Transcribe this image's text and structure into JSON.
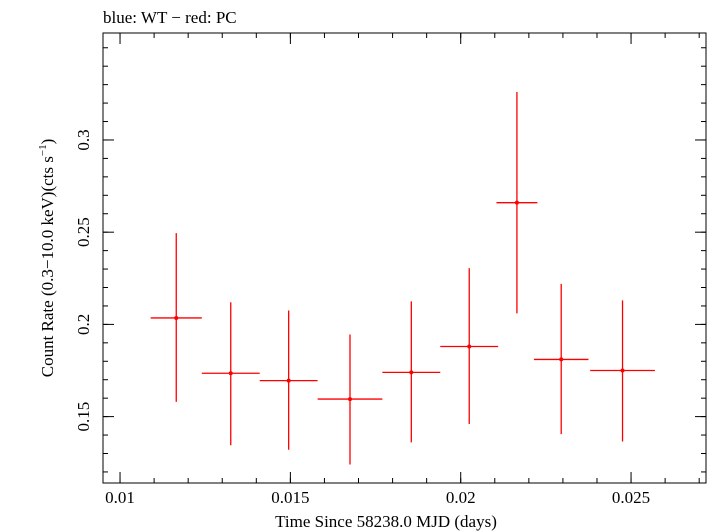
{
  "chart_data": {
    "type": "scatter",
    "title": "blue: WT − red: PC",
    "xlabel": "Time Since 58238.0 MJD (days)",
    "ylabel_main": "Count Rate (0.3−10.0 keV)(cts s",
    "ylabel_sup": "−1",
    "ylabel_end": ")",
    "xlim": [
      0.0095,
      0.0272
    ],
    "ylim": [
      0.114,
      0.358
    ],
    "x_ticks": [
      0.01,
      0.015,
      0.02,
      0.025
    ],
    "x_tick_labels": [
      "0.01",
      "0.015",
      "0.02",
      "0.025"
    ],
    "x_minor_step": 0.001,
    "y_ticks": [
      0.15,
      0.2,
      0.25,
      0.3
    ],
    "y_tick_labels": [
      "0.15",
      "0.2",
      "0.25",
      "0.3"
    ],
    "y_minor_step": 0.01,
    "grid": false,
    "series": [
      {
        "color": "#ff0000",
        "points": [
          {
            "x": 0.01165,
            "xerr": 0.00075,
            "y": 0.2035,
            "yerr_lo": 0.0455,
            "yerr_hi": 0.046
          },
          {
            "x": 0.01325,
            "xerr": 0.00085,
            "y": 0.1735,
            "yerr_lo": 0.039,
            "yerr_hi": 0.0385
          },
          {
            "x": 0.01495,
            "xerr": 0.00085,
            "y": 0.1695,
            "yerr_lo": 0.0375,
            "yerr_hi": 0.038
          },
          {
            "x": 0.01675,
            "xerr": 0.00095,
            "y": 0.1595,
            "yerr_lo": 0.0355,
            "yerr_hi": 0.035
          },
          {
            "x": 0.01855,
            "xerr": 0.00085,
            "y": 0.174,
            "yerr_lo": 0.038,
            "yerr_hi": 0.0385
          },
          {
            "x": 0.02025,
            "xerr": 0.00085,
            "y": 0.188,
            "yerr_lo": 0.042,
            "yerr_hi": 0.0425
          },
          {
            "x": 0.02165,
            "xerr": 0.0006,
            "y": 0.266,
            "yerr_lo": 0.06,
            "yerr_hi": 0.06
          },
          {
            "x": 0.02295,
            "xerr": 0.0008,
            "y": 0.181,
            "yerr_lo": 0.0405,
            "yerr_hi": 0.041
          },
          {
            "x": 0.02475,
            "xerr": 0.00095,
            "y": 0.175,
            "yerr_lo": 0.0385,
            "yerr_hi": 0.038
          }
        ]
      }
    ]
  }
}
